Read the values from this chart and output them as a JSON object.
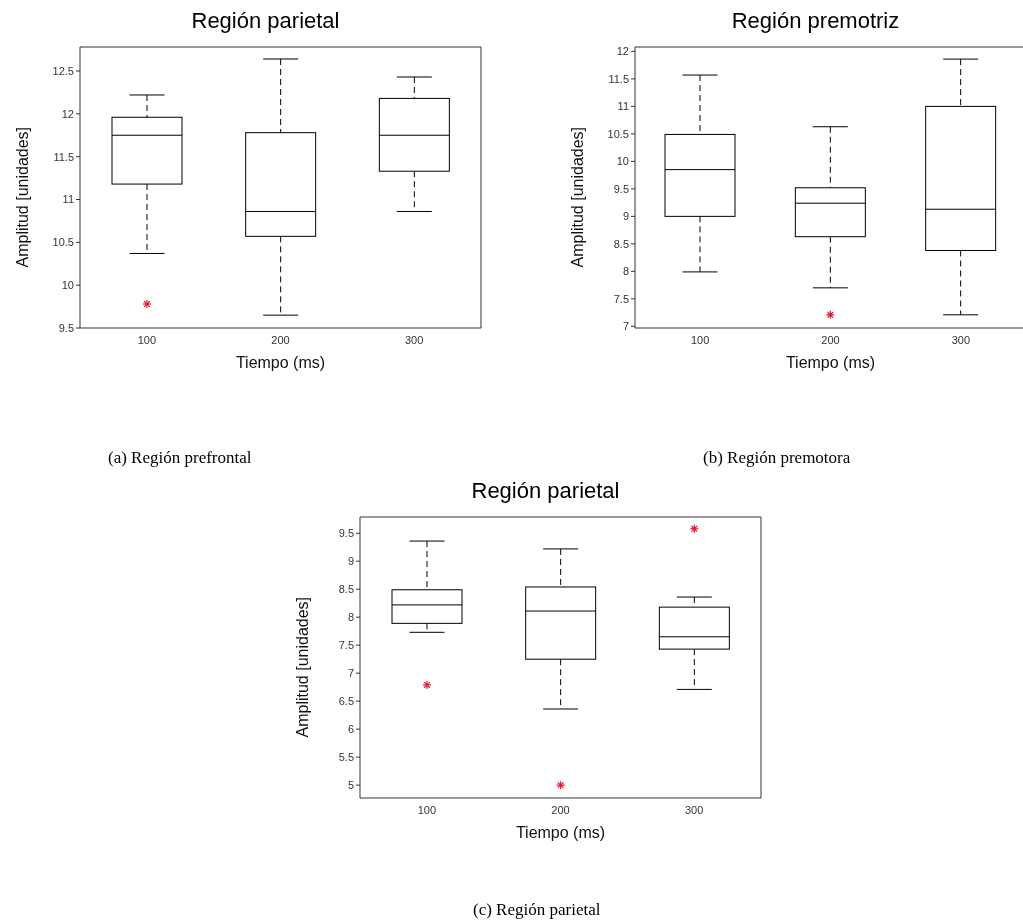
{
  "chart_data": [
    {
      "type": "box",
      "title": "Región parietal",
      "xlabel": "Tiempo (ms)",
      "ylabel": "Amplitud [unidades]",
      "categories": [
        "100",
        "200",
        "300"
      ],
      "ylim": [
        9.5,
        12.78
      ],
      "yticks": [
        9.5,
        10,
        10.5,
        11,
        11.5,
        12,
        12.5
      ],
      "color": "#000000",
      "boxes": [
        {
          "low": 10.37,
          "q1": 11.18,
          "median": 11.75,
          "q3": 11.96,
          "high": 12.22,
          "outliers": [
            9.78
          ]
        },
        {
          "low": 9.65,
          "q1": 10.57,
          "median": 10.86,
          "q3": 11.78,
          "high": 12.64
        },
        {
          "low": 10.86,
          "q1": 11.33,
          "median": 11.75,
          "q3": 12.18,
          "high": 12.43
        }
      ],
      "annotations": [
        "(a) Región prefrontal"
      ]
    },
    {
      "type": "box",
      "title": "Región premotriz",
      "xlabel": "Tiempo (ms)",
      "ylabel": "Amplitud [unidades]",
      "categories": [
        "100",
        "200",
        "300"
      ],
      "ylim": [
        6.97,
        12.08
      ],
      "yticks": [
        7,
        7.5,
        8,
        8.5,
        9,
        9.5,
        10,
        10.5,
        11,
        11.5,
        12
      ],
      "color": "#000000",
      "boxes": [
        {
          "low": 7.99,
          "q1": 9.0,
          "median": 9.85,
          "q3": 10.49,
          "high": 11.57
        },
        {
          "low": 7.7,
          "q1": 8.63,
          "median": 9.24,
          "q3": 9.52,
          "high": 10.63,
          "outliers": [
            7.21
          ]
        },
        {
          "low": 7.21,
          "q1": 8.38,
          "median": 9.13,
          "q3": 11.0,
          "high": 11.86
        }
      ],
      "annotations": [
        "(b) Región premotora"
      ]
    },
    {
      "type": "box",
      "title": "Región parietal",
      "xlabel": "Tiempo (ms)",
      "ylabel": "Amplitud [unidades]",
      "categories": [
        "100",
        "200",
        "300"
      ],
      "ylim": [
        4.77,
        9.79
      ],
      "yticks": [
        5,
        5.5,
        6,
        6.5,
        7,
        7.5,
        8,
        8.5,
        9,
        9.5
      ],
      "color": "#000000",
      "boxes": [
        {
          "low": 7.73,
          "q1": 7.89,
          "median": 8.22,
          "q3": 8.49,
          "high": 9.36,
          "outliers": [
            6.79
          ]
        },
        {
          "low": 6.36,
          "q1": 7.25,
          "median": 8.11,
          "q3": 8.54,
          "high": 9.22,
          "outliers": [
            5.0
          ]
        },
        {
          "low": 6.71,
          "q1": 7.43,
          "median": 7.65,
          "q3": 8.18,
          "high": 8.36,
          "outliers": [
            9.58
          ]
        }
      ],
      "annotations": [
        "(c) Región parietal"
      ]
    }
  ]
}
